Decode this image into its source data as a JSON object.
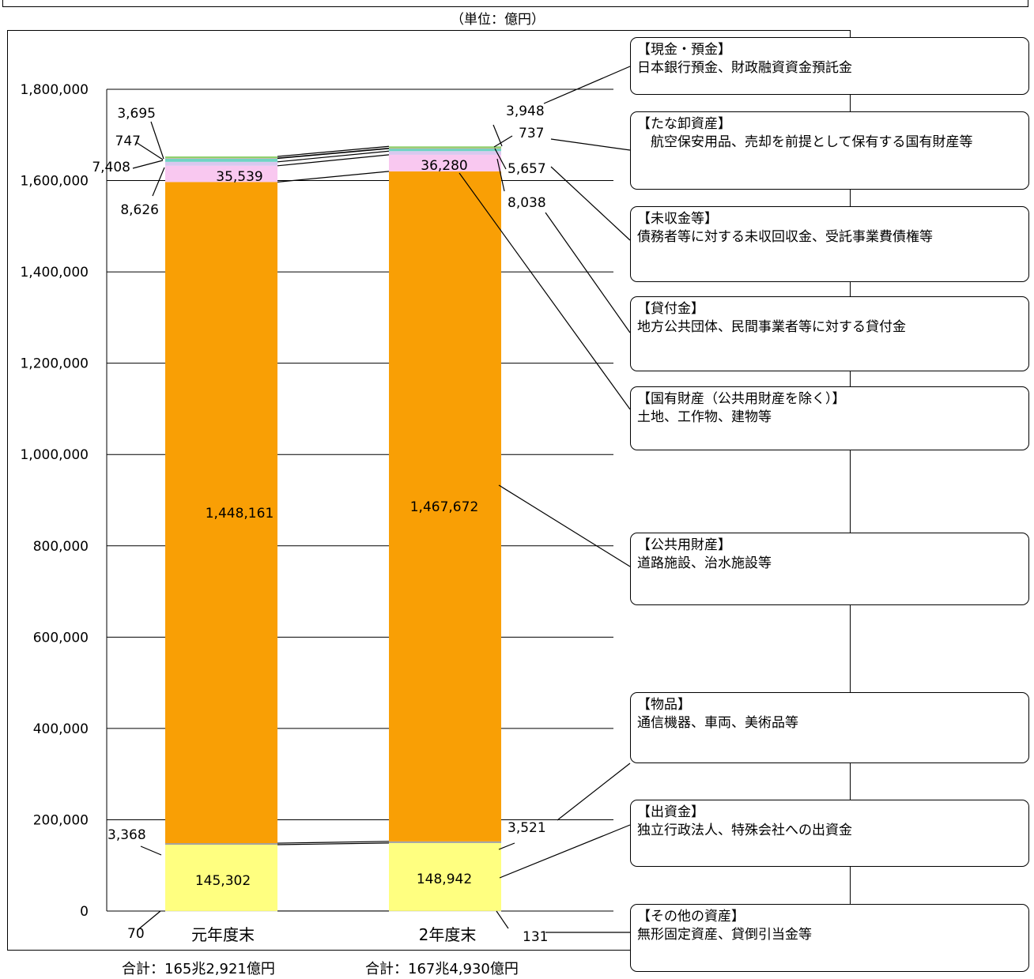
{
  "header": {
    "unit": "（単位：億円）"
  },
  "chart_data": {
    "type": "bar",
    "stacked": true,
    "categories": [
      "元年度末",
      "2年度末"
    ],
    "yticks": [
      "0",
      "200,000",
      "400,000",
      "600,000",
      "800,000",
      "1,000,000",
      "1,200,000",
      "1,400,000",
      "1,600,000",
      "1,800,000"
    ],
    "ylim": [
      0,
      1850000
    ],
    "grid": true,
    "series": [
      {
        "name": "【その他の資産】",
        "values": [
          70,
          131
        ],
        "labels": [
          "70",
          "131"
        ],
        "color": "#d9d9d9"
      },
      {
        "name": "【出資金】",
        "values": [
          145302,
          148942
        ],
        "labels": [
          "145,302",
          "148,942"
        ],
        "color": "#ffff80"
      },
      {
        "name": "【物品】",
        "values": [
          3368,
          3521
        ],
        "labels": [
          "3,368",
          "3,521"
        ],
        "color": "#a0a0a0"
      },
      {
        "name": "【公共用財産】",
        "values": [
          1448161,
          1467672
        ],
        "labels": [
          "1,448,161",
          "1,467,672"
        ],
        "color": "#f99f05"
      },
      {
        "name": "【国有財産（公共用財産を除く）】",
        "values": [
          35539,
          36280
        ],
        "labels": [
          "35,539",
          "36,280"
        ],
        "color": "#f9c8f0"
      },
      {
        "name": "【貸付金】",
        "values": [
          8626,
          8038
        ],
        "labels": [
          "8,626",
          "8,038"
        ],
        "color": "#d9c8ef"
      },
      {
        "name": "【未収金等】",
        "values": [
          7408,
          5657
        ],
        "labels": [
          "7,408",
          "5,657"
        ],
        "color": "#6fd3c4"
      },
      {
        "name": "【たな卸資産】",
        "values": [
          747,
          737
        ],
        "labels": [
          "747",
          "737"
        ],
        "color": "#f4a1a1"
      },
      {
        "name": "【現金・預金】",
        "values": [
          3695,
          3948
        ],
        "labels": [
          "3,695",
          "3,948"
        ],
        "color": "#8fd16d"
      }
    ],
    "totals": [
      "合計：165兆2,921億円",
      "合計：167兆4,930億円"
    ]
  },
  "callouts": [
    {
      "title": "【現金・預金】",
      "desc": "日本銀行預金、財政融資資金預託金"
    },
    {
      "title": "【たな卸資産】",
      "desc": "　航空保安用品、売却を前提として保有する国有財産等"
    },
    {
      "title": "【未収金等】",
      "desc": "債務者等に対する未収回収金、受託事業費債権等"
    },
    {
      "title": "【貸付金】",
      "desc": "地方公共団体、民間事業者等に対する貸付金"
    },
    {
      "title": "【国有財産（公共用財産を除く）】",
      "desc": "土地、工作物、建物等"
    },
    {
      "title": "【公共用財産】",
      "desc": "道路施設、治水施設等"
    },
    {
      "title": "【物品】",
      "desc": "通信機器、車両、美術品等"
    },
    {
      "title": "【出資金】",
      "desc": "独立行政法人、特殊会社への出資金"
    },
    {
      "title": "【その他の資産】",
      "desc": "無形固定資産、貸倒引当金等"
    }
  ]
}
